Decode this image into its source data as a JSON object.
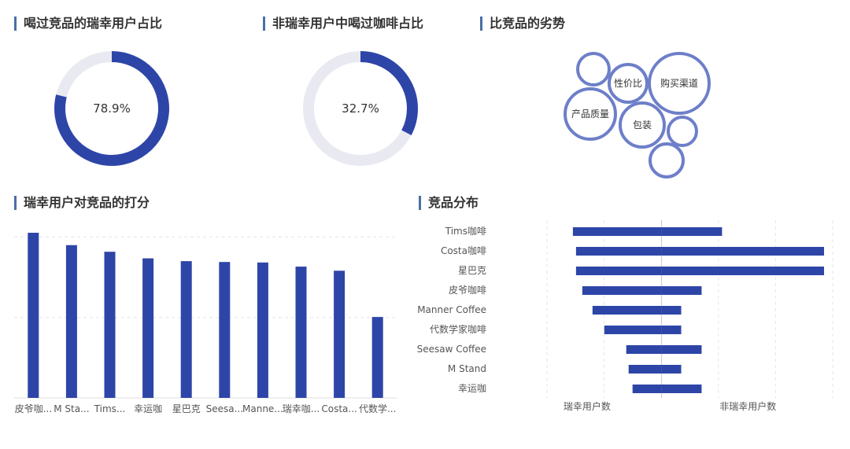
{
  "titles": {
    "donut1": "喝过竞品的瑞幸用户占比",
    "donut2": "非瑞幸用户中喝过咖啡占比",
    "bubbles": "比竞品的劣势",
    "bar": "瑞幸用户对竞品的打分",
    "funnel": "竞品分布"
  },
  "colors": {
    "primary": "#2e45a8",
    "track": "#e9eaf1",
    "bubble_stroke": "#6d7fc9"
  },
  "chart_data": [
    {
      "type": "pie",
      "variant": "donut",
      "value_label": "78.9%",
      "values": [
        78.9,
        21.1
      ]
    },
    {
      "type": "pie",
      "variant": "donut",
      "value_label": "32.7%",
      "values": [
        32.7,
        67.3
      ]
    },
    {
      "type": "scatter",
      "variant": "bubble",
      "points": [
        {
          "label": "",
          "size": 20
        },
        {
          "label": "性价比",
          "size": 24
        },
        {
          "label": "购买渠道",
          "size": 38
        },
        {
          "label": "产品质量",
          "size": 32
        },
        {
          "label": "包装",
          "size": 28
        },
        {
          "label": "",
          "size": 18
        },
        {
          "label": "",
          "size": 21
        }
      ]
    },
    {
      "type": "bar",
      "categories": [
        "皮爷咖...",
        "M Sta...",
        "Tims...",
        "幸运咖",
        "星巴克",
        "Seesa...",
        "Manne...",
        "瑞幸咖...",
        "Costa...",
        "代数学..."
      ],
      "values": [
        100,
        92.5,
        88.5,
        84.5,
        82.8,
        82.3,
        82,
        79.5,
        77,
        49
      ],
      "ylim": [
        0,
        100
      ],
      "grid": true
    },
    {
      "type": "bar",
      "variant": "butterfly",
      "categories": [
        "Tims咖啡",
        "Costa咖啡",
        "星巴克",
        "皮爷咖啡",
        "Manner Coffee",
        "代数学家咖啡",
        "Seesaw Coffee",
        "M Stand",
        "幸运咖"
      ],
      "series": [
        {
          "name": "瑞幸用户数",
          "values": [
            113,
            109,
            109,
            101,
            88,
            73,
            45,
            42,
            37
          ]
        },
        {
          "name": "非瑞幸用户数",
          "values": [
            77,
            207,
            207,
            51,
            25,
            25,
            51,
            25,
            51
          ]
        }
      ],
      "xlim": [
        -146,
        218
      ],
      "grid": true
    }
  ]
}
